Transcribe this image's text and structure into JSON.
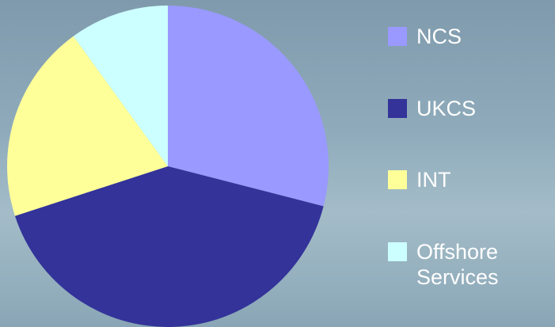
{
  "chart_data": {
    "type": "pie",
    "categories": [
      "NCS",
      "UKCS",
      "INT",
      "Offshore Services"
    ],
    "values": [
      29,
      41,
      20,
      10
    ],
    "colors": [
      "#9999ff",
      "#333399",
      "#ffff99",
      "#ccffff"
    ],
    "legend": "right"
  }
}
